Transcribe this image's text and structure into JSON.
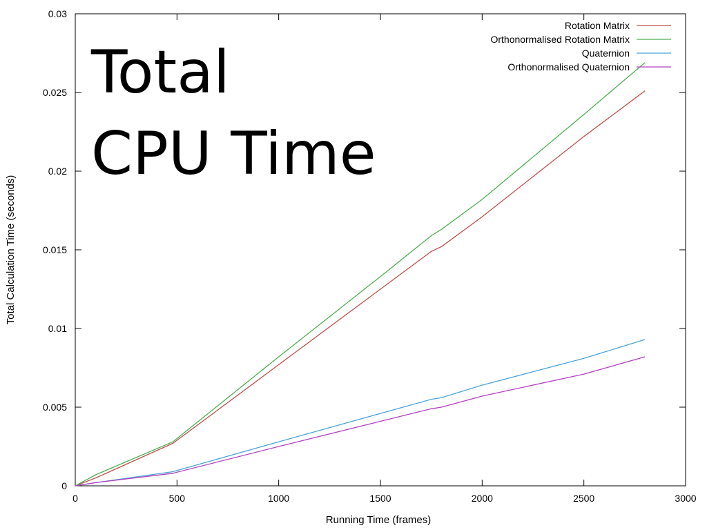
{
  "chart_data": {
    "type": "line",
    "title_lines": [
      "Total",
      "CPU Time"
    ],
    "xlabel": "Running Time (frames)",
    "ylabel": "Total Calculation Time (seconds)",
    "xlim": [
      0,
      3000
    ],
    "ylim": [
      0,
      0.03
    ],
    "x_ticks": [
      "0",
      "500",
      "1000",
      "1500",
      "2000",
      "2500",
      "3000"
    ],
    "y_ticks": [
      "0",
      "0.005",
      "0.01",
      "0.015",
      "0.02",
      "0.025",
      "0.03"
    ],
    "x_tick_values": [
      0,
      500,
      1000,
      1500,
      2000,
      2500,
      3000
    ],
    "y_tick_values": [
      0,
      0.005,
      0.01,
      0.015,
      0.02,
      0.025,
      0.03
    ],
    "grid": false,
    "legend_position": "top-right",
    "series": [
      {
        "name": "Rotation Matrix",
        "color": "#c0504d",
        "x": [
          0,
          100,
          480,
          1000,
          1500,
          1750,
          1800,
          2000,
          2500,
          2800
        ],
        "y": [
          0,
          0.0005,
          0.0027,
          0.0077,
          0.0125,
          0.0149,
          0.0152,
          0.0171,
          0.0222,
          0.0251
        ]
      },
      {
        "name": "Orthonormalised Rotation Matrix",
        "color": "#4caf50",
        "x": [
          0,
          100,
          480,
          1000,
          1500,
          1750,
          1800,
          2000,
          2500,
          2800
        ],
        "y": [
          0,
          0.0007,
          0.0028,
          0.0082,
          0.0133,
          0.0159,
          0.0163,
          0.0182,
          0.0236,
          0.0269
        ]
      },
      {
        "name": "Quaternion",
        "color": "#4aa3d8",
        "x": [
          0,
          100,
          480,
          1000,
          1500,
          1750,
          1800,
          2000,
          2500,
          2800
        ],
        "y": [
          0,
          0.0002,
          0.0009,
          0.0028,
          0.0046,
          0.0055,
          0.0056,
          0.0064,
          0.0081,
          0.0093
        ]
      },
      {
        "name": "Orthonormalised Quaternion",
        "color": "#b040c0",
        "x": [
          0,
          100,
          480,
          1000,
          1500,
          1750,
          1800,
          2000,
          2500,
          2800
        ],
        "y": [
          0,
          0.0002,
          0.0008,
          0.0025,
          0.0041,
          0.0049,
          0.005,
          0.0057,
          0.0071,
          0.0082
        ]
      }
    ]
  }
}
